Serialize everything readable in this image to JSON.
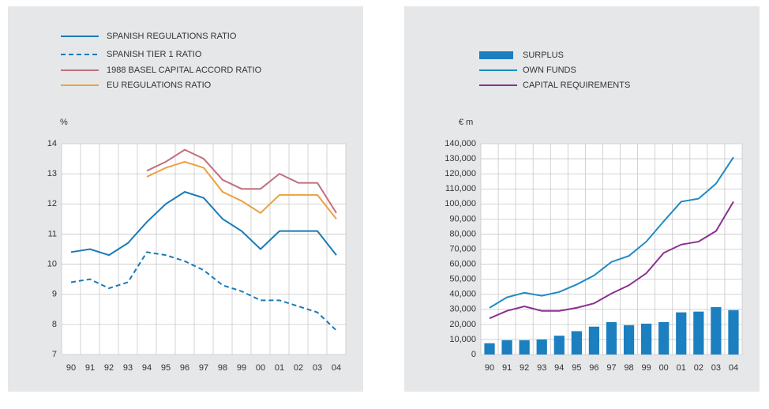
{
  "chart_data": [
    {
      "type": "line",
      "y_label": "%",
      "categories": [
        "90",
        "91",
        "92",
        "93",
        "94",
        "95",
        "96",
        "97",
        "98",
        "99",
        "00",
        "01",
        "02",
        "03",
        "04"
      ],
      "ylim": [
        7,
        14
      ],
      "yticks": [
        7,
        8,
        9,
        10,
        11,
        12,
        13,
        14
      ],
      "grid": true,
      "series": [
        {
          "name": "SPANISH REGULATIONS RATIO",
          "color": "#1a7ab8",
          "style": "solid",
          "values": [
            10.4,
            10.5,
            10.3,
            10.7,
            11.4,
            12.0,
            12.4,
            12.2,
            11.5,
            11.1,
            10.5,
            11.1,
            11.1,
            11.1,
            10.3
          ]
        },
        {
          "name": "SPANISH TIER 1 RATIO",
          "color": "#1a7ab8",
          "style": "dashed",
          "values": [
            9.4,
            9.5,
            9.2,
            9.4,
            10.4,
            10.3,
            10.1,
            9.8,
            9.3,
            9.1,
            8.8,
            8.8,
            8.6,
            8.4,
            7.8
          ]
        },
        {
          "name": "1988 BASEL CAPITAL ACCORD RATIO",
          "color": "#c0707f",
          "style": "solid",
          "values": [
            null,
            null,
            null,
            null,
            13.1,
            13.4,
            13.8,
            13.5,
            12.8,
            12.5,
            12.5,
            13.0,
            12.7,
            12.7,
            11.7
          ]
        },
        {
          "name": "EU REGULATIONS RATIO",
          "color": "#eea040",
          "style": "solid",
          "values": [
            null,
            null,
            null,
            null,
            12.9,
            13.2,
            13.4,
            13.2,
            12.4,
            12.1,
            11.7,
            12.3,
            12.3,
            12.3,
            11.5
          ]
        }
      ]
    },
    {
      "type": "combo",
      "y_label": "€ m",
      "categories": [
        "90",
        "91",
        "92",
        "93",
        "94",
        "95",
        "96",
        "97",
        "98",
        "99",
        "00",
        "01",
        "02",
        "03",
        "04"
      ],
      "ylim": [
        0,
        140000
      ],
      "grid": true,
      "yticks": [
        0,
        {
          "value": 10000,
          "label": "10,000"
        },
        {
          "value": 20000,
          "label": "20,000"
        },
        {
          "value": 30000,
          "label": "30,000"
        },
        {
          "value": 40000,
          "label": "40,000"
        },
        {
          "value": 50000,
          "label": "50,000"
        },
        {
          "value": 60000,
          "label": "60,000"
        },
        {
          "value": 70000,
          "label": "70,000"
        },
        {
          "value": 80000,
          "label": "80,000"
        },
        {
          "value": 90000,
          "label": "90,000"
        },
        {
          "value": 100000,
          "label": "100,000"
        },
        {
          "value": 110000,
          "label": "110,000"
        },
        {
          "value": 120000,
          "label": "120,000"
        },
        {
          "value": 130000,
          "label": "130,000"
        },
        {
          "value": 140000,
          "label": "140,000"
        }
      ],
      "series": [
        {
          "name": "SURPLUS",
          "type": "bar",
          "color": "#1b7fc0",
          "values": [
            7500,
            9500,
            9500,
            10000,
            12500,
            15500,
            18500,
            21500,
            19500,
            20500,
            21500,
            28000,
            28500,
            31500,
            29500
          ]
        },
        {
          "name": "OWN FUNDS",
          "type": "line",
          "color": "#1f8bc4",
          "values": [
            31000,
            38000,
            41000,
            39000,
            41500,
            46500,
            52500,
            61500,
            65500,
            75000,
            88500,
            101500,
            103500,
            113500,
            131000
          ]
        },
        {
          "name": "CAPITAL REQUIREMENTS",
          "type": "line",
          "color": "#8b3090",
          "values": [
            24000,
            29000,
            32000,
            29000,
            29000,
            31000,
            34000,
            40500,
            46000,
            54000,
            67500,
            73000,
            75000,
            82000,
            101500
          ]
        }
      ]
    }
  ]
}
